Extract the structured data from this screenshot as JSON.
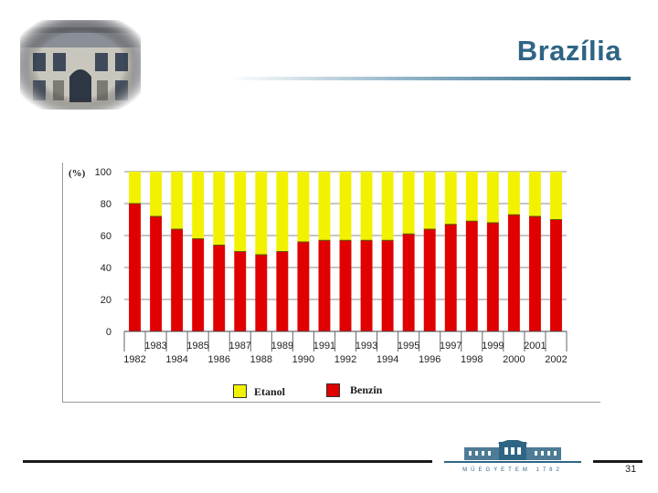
{
  "slide": {
    "title": "Brazília",
    "page_number": "31",
    "logo_text": "MŰEGYETEM 1782"
  },
  "chart_data": {
    "type": "bar",
    "stacked": true,
    "unit_label": "(%)",
    "x": [
      "1982",
      "1983",
      "1984",
      "1985",
      "1986",
      "1987",
      "1988",
      "1989",
      "1990",
      "1991",
      "1992",
      "1993",
      "1994",
      "1995",
      "1996",
      "1997",
      "1998",
      "1999",
      "2000",
      "2001",
      "2002"
    ],
    "x_labels_upper": [
      "1983",
      "1985",
      "1987",
      "1989",
      "1991",
      "1993",
      "1995",
      "1997",
      "1999",
      "2001"
    ],
    "x_labels_lower": [
      "1982",
      "1984",
      "1986",
      "1988",
      "1990",
      "1992",
      "1994",
      "1996",
      "1998",
      "2000",
      "2002"
    ],
    "series": [
      {
        "name": "Benzin",
        "color": "#e00000",
        "values": [
          80,
          72,
          64,
          58,
          54,
          50,
          48,
          50,
          56,
          57,
          57,
          57,
          57,
          61,
          64,
          67,
          69,
          68,
          73,
          72,
          70
        ]
      },
      {
        "name": "Etanol",
        "color": "#f2f200",
        "values": [
          20,
          28,
          36,
          42,
          46,
          50,
          52,
          50,
          44,
          43,
          43,
          43,
          43,
          39,
          36,
          33,
          31,
          32,
          27,
          28,
          30
        ]
      }
    ],
    "ylim": [
      0,
      100
    ],
    "yticks": [
      0,
      20,
      40,
      60,
      80,
      100
    ],
    "legend": [
      {
        "label": "Etanol",
        "color": "#f2f200"
      },
      {
        "label": "Benzin",
        "color": "#e00000"
      }
    ],
    "grid": "horizontal",
    "legend_position": "bottom"
  }
}
